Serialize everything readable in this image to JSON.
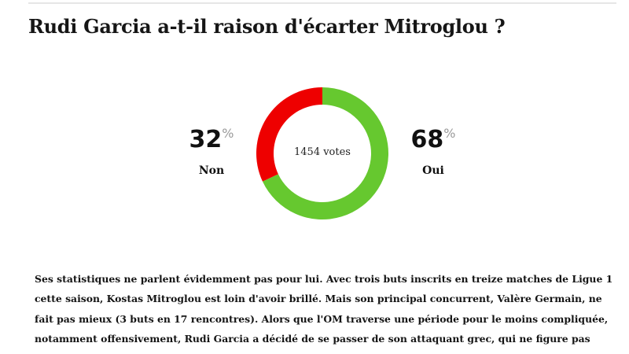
{
  "poll": {
    "title": "Rudi Garcia a-t-il raison d'écarter Mitroglou ?",
    "total_votes": "1454 votes",
    "percent_sign": "%",
    "options": [
      {
        "label": "Non",
        "percent": "32",
        "color": "#ee0000"
      },
      {
        "label": "Oui",
        "percent": "68",
        "color": "#66c82f"
      }
    ]
  },
  "chart_data": {
    "type": "pie",
    "categories": [
      "Non",
      "Oui"
    ],
    "values": [
      32,
      68
    ],
    "colors": [
      "#ee0000",
      "#66c82f"
    ],
    "center_text": "1454 votes"
  },
  "article": {
    "lines": [
      "Ses statistiques ne parlent évidemment pas pour lui. Avec trois buts inscrits en treize matches de Ligue 1",
      "cette saison, Kostas Mitroglou est loin d'avoir brillé. Mais son principal concurrent, Valère Germain, ne",
      "fait pas mieux (3 buts en 17 rencontres). Alors que l'OM traverse une période pour le moins compliquée,",
      "notamment offensivement, Rudi Garcia a décidé de se passer de son attaquant grec, qui ne figure pas"
    ]
  }
}
